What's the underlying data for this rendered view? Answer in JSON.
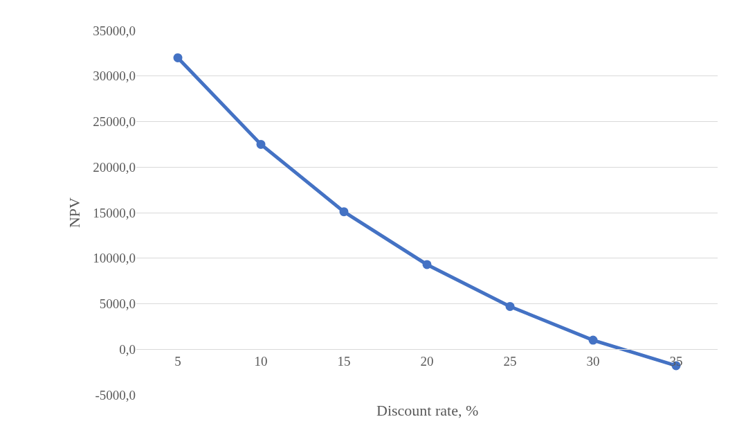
{
  "chart_data": {
    "type": "line",
    "xlabel": "Discount rate, %",
    "ylabel": "NPV",
    "categories": [
      "5",
      "10",
      "15",
      "20",
      "25",
      "30",
      "35"
    ],
    "series": [
      {
        "color": "#4472c4",
        "values": [
          32000,
          22500,
          15100,
          9300,
          4700,
          1000,
          -1800
        ]
      }
    ],
    "ylim": [
      -5000,
      35000
    ],
    "yticks": [
      {
        "value": -5000,
        "label": "-5000,0"
      },
      {
        "value": 0,
        "label": "0,0"
      },
      {
        "value": 5000,
        "label": "5000,0"
      },
      {
        "value": 10000,
        "label": "10000,0"
      },
      {
        "value": 15000,
        "label": "15000,0"
      },
      {
        "value": 20000,
        "label": "20000,0"
      },
      {
        "value": 25000,
        "label": "25000,0"
      },
      {
        "value": 30000,
        "label": "30000,0"
      },
      {
        "value": 35000,
        "label": "35000,0"
      }
    ],
    "grid": "y",
    "legend": false,
    "marker": "circle",
    "line_style": "solid"
  }
}
